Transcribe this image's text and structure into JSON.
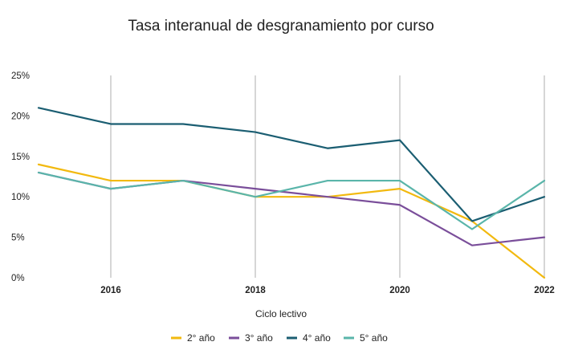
{
  "chart_data": {
    "type": "line",
    "title": "Tasa interanual de desgranamiento por curso",
    "xlabel": "Ciclo lectivo",
    "ylabel": "",
    "x": [
      2015,
      2016,
      2017,
      2018,
      2019,
      2020,
      2021,
      2022
    ],
    "xticks": [
      2016,
      2018,
      2020,
      2022
    ],
    "xlim": [
      2015,
      2022
    ],
    "ylim": [
      0,
      25
    ],
    "yticks": [
      0,
      5,
      10,
      15,
      20,
      25
    ],
    "ytick_labels": [
      "0%",
      "5%",
      "10%",
      "15%",
      "20%",
      "25%"
    ],
    "grid": "vertical",
    "legend_position": "bottom",
    "series": [
      {
        "name": "2° año",
        "color": "#F2B90F",
        "values": [
          14,
          12,
          12,
          10,
          10,
          11,
          7,
          0
        ]
      },
      {
        "name": "3° año",
        "color": "#7A4E9A",
        "values": [
          13,
          11,
          12,
          11,
          10,
          9,
          4,
          5
        ]
      },
      {
        "name": "4° año",
        "color": "#1B5E72",
        "values": [
          21,
          19,
          19,
          18,
          16,
          17,
          7,
          10
        ]
      },
      {
        "name": "5° año",
        "color": "#5AB5AA",
        "values": [
          13,
          11,
          12,
          10,
          12,
          12,
          6,
          12
        ]
      }
    ]
  }
}
